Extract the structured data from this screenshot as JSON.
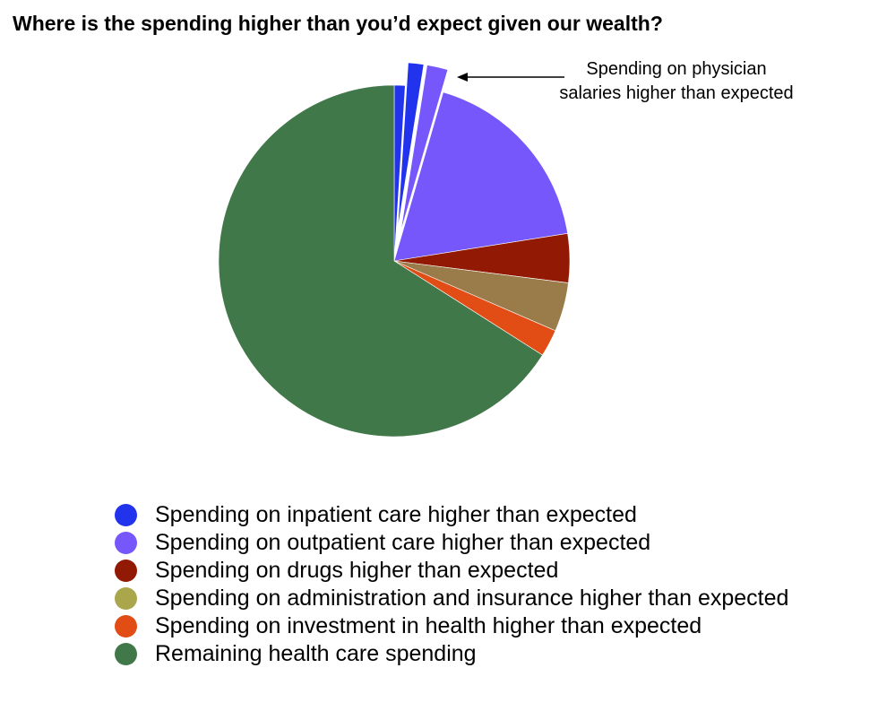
{
  "chart_data": {
    "type": "pie",
    "title": "Where is the spending higher than you’d expect given our wealth?",
    "annotation": {
      "text": "Spending on physician salaries higher than expected",
      "lines": [
        "Spending on physician",
        "salaries higher than expected"
      ]
    },
    "slices": [
      {
        "label": "",
        "value": 1.0,
        "color": "#2233ee",
        "exploded": false
      },
      {
        "label": "",
        "value": 1.5,
        "color": "#2233ee",
        "exploded": true
      },
      {
        "label": "",
        "value": 2.0,
        "color": "#7657fb",
        "exploded": true
      },
      {
        "label": "",
        "value": 18.0,
        "color": "#7657fb",
        "exploded": false
      },
      {
        "label": "",
        "value": 4.5,
        "color": "#921a04",
        "exploded": false
      },
      {
        "label": "",
        "value": 4.5,
        "color": "#9a7b4a",
        "exploded": false
      },
      {
        "label": "",
        "value": 2.5,
        "color": "#e14d14",
        "exploded": false
      },
      {
        "label": "",
        "value": 66.0,
        "color": "#41784a",
        "exploded": false
      }
    ],
    "legend": [
      {
        "label": "Spending on inpatient care higher than expected",
        "color": "#2233ee"
      },
      {
        "label": "Spending on outpatient care higher than expected",
        "color": "#7657fb"
      },
      {
        "label": "Spending on drugs higher than expected",
        "color": "#921a04"
      },
      {
        "label": "Spending on administration and insurance higher than expected",
        "color": "#aaa64c"
      },
      {
        "label": "Spending on investment in health higher than expected",
        "color": "#e14d14"
      },
      {
        "label": "Remaining health care spending",
        "color": "#41784a"
      }
    ],
    "legend_position": "bottom"
  }
}
